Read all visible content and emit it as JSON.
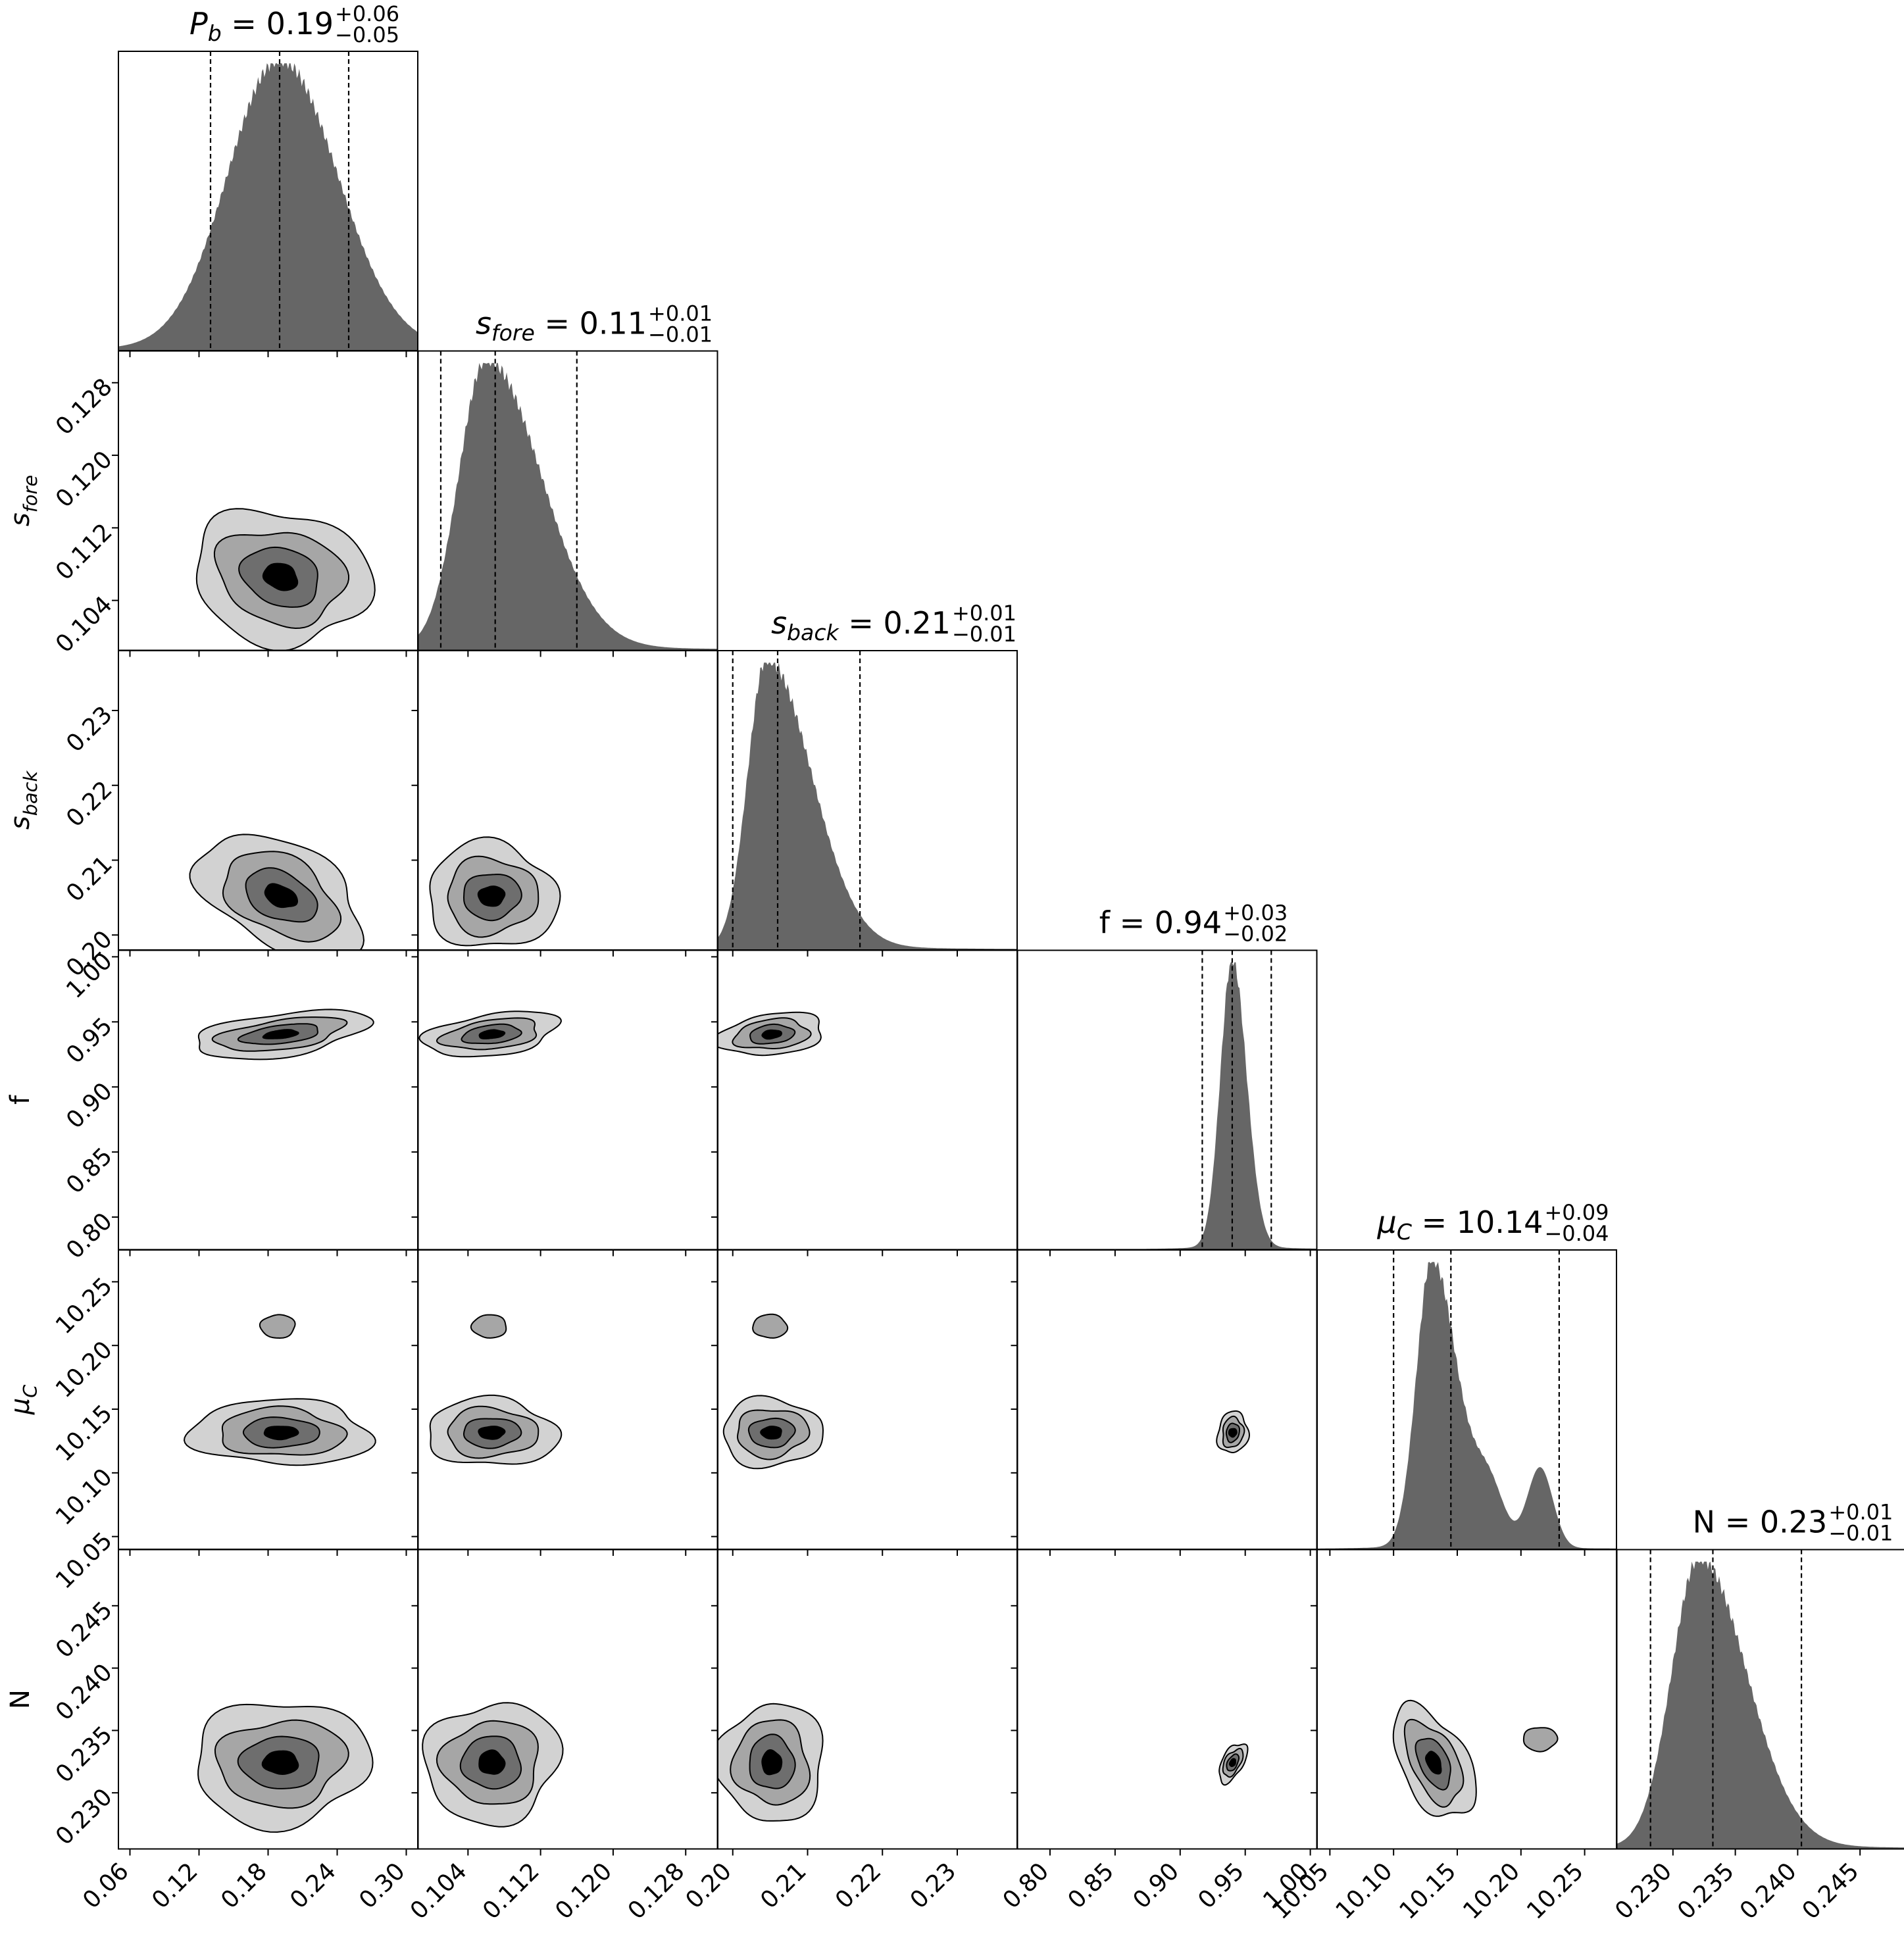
{
  "chart_data": {
    "type": "corner",
    "parameters": [
      {
        "key": "Pb",
        "symbol": "P",
        "sub": "b",
        "italic": true,
        "ticks": [
          "0.06",
          "0.12",
          "0.18",
          "0.24",
          "0.30"
        ],
        "tick_values": [
          0.06,
          0.12,
          0.18,
          0.24,
          0.3
        ],
        "range": [
          0.05,
          0.31
        ],
        "median": 0.19,
        "plus": "+0.06",
        "minus": "−0.05",
        "value_label": "0.19",
        "quantiles": [
          0.13,
          0.19,
          0.25
        ],
        "peak": 0.19,
        "width_lo": 0.045,
        "width_hi": 0.05
      },
      {
        "key": "sfore",
        "symbol": "s",
        "sub": "fore",
        "italic": true,
        "ticks": [
          "0.104",
          "0.112",
          "0.120",
          "0.128"
        ],
        "tick_values": [
          0.104,
          0.112,
          0.12,
          0.128
        ],
        "range": [
          0.0985,
          0.1315
        ],
        "median": 0.11,
        "plus": "+0.01",
        "minus": "−0.01",
        "value_label": "0.11",
        "quantiles": [
          0.101,
          0.107,
          0.116
        ],
        "peak": 0.106,
        "width_lo": 0.003,
        "width_hi": 0.006
      },
      {
        "key": "sback",
        "symbol": "s",
        "sub": "back",
        "italic": true,
        "ticks": [
          "0.20",
          "0.21",
          "0.22",
          "0.23"
        ],
        "tick_values": [
          0.2,
          0.21,
          0.22,
          0.23
        ],
        "range": [
          0.198,
          0.238
        ],
        "median": 0.21,
        "plus": "+0.01",
        "minus": "−0.01",
        "value_label": "0.21",
        "quantiles": [
          0.2,
          0.206,
          0.217
        ],
        "peak": 0.2045,
        "width_lo": 0.0025,
        "width_hi": 0.006
      },
      {
        "key": "f",
        "symbol": "f",
        "sub": "",
        "italic": false,
        "ticks": [
          "0.80",
          "0.85",
          "0.90",
          "0.95",
          "1.00"
        ],
        "tick_values": [
          0.8,
          0.85,
          0.9,
          0.95,
          1.0
        ],
        "range": [
          0.775,
          1.005
        ],
        "median": 0.94,
        "plus": "+0.03",
        "minus": "−0.02",
        "value_label": "0.94",
        "quantiles": [
          0.917,
          0.94,
          0.97
        ],
        "peak": 0.94,
        "width_lo": 0.009,
        "width_hi": 0.011
      },
      {
        "key": "muC",
        "symbol": "μ",
        "sub": "C",
        "italic": true,
        "ticks": [
          "10.05",
          "10.10",
          "10.15",
          "10.20",
          "10.25"
        ],
        "tick_values": [
          10.05,
          10.1,
          10.15,
          10.2,
          10.25
        ],
        "range": [
          10.04,
          10.275
        ],
        "median": 10.14,
        "plus": "+0.09",
        "minus": "−0.04",
        "value_label": "10.14",
        "quantiles": [
          10.1,
          10.145,
          10.23
        ],
        "peak": 10.13,
        "width_lo": 0.012,
        "width_hi": 0.02
      },
      {
        "key": "N",
        "symbol": "N",
        "sub": "",
        "italic": false,
        "ticks": [
          "0.230",
          "0.235",
          "0.240",
          "0.245"
        ],
        "tick_values": [
          0.23,
          0.235,
          0.24,
          0.245
        ],
        "range": [
          0.2255,
          0.2495
        ],
        "median": 0.23,
        "plus": "+0.01",
        "minus": "−0.01",
        "value_label": "0.23",
        "quantiles": [
          0.2282,
          0.2332,
          0.2403
        ],
        "peak": 0.2321,
        "width_lo": 0.0022,
        "width_hi": 0.0038
      }
    ],
    "contour_levels": 4,
    "contour_fills": [
      "#d2d2d2",
      "#a6a6a6",
      "#6e6e6e",
      "#000000"
    ],
    "histogram_color": "#666666",
    "grid": false,
    "legend": "none"
  }
}
